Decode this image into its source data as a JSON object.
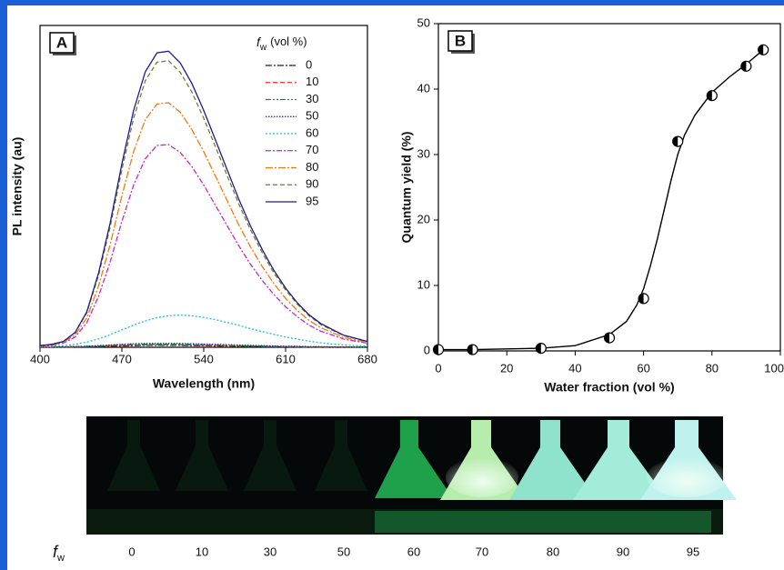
{
  "chart_data": [
    {
      "type": "line",
      "panel_label": "A",
      "y_label": "PL intensity (au)",
      "x_label": "Wavelength (nm)",
      "legend_title_symbol": "f",
      "legend_title_subscript": "w",
      "legend_title_unit": "(vol %)",
      "xlim": [
        400,
        680
      ],
      "xticks": [
        400,
        470,
        540,
        610,
        680
      ],
      "ylim": [
        0,
        100
      ],
      "x": [
        400,
        410,
        420,
        430,
        440,
        450,
        460,
        470,
        480,
        490,
        500,
        510,
        520,
        530,
        540,
        550,
        560,
        570,
        580,
        590,
        600,
        610,
        620,
        630,
        640,
        650,
        660,
        670,
        680
      ],
      "series": [
        {
          "name": "0",
          "color": "#222222",
          "dash": "7 2 2 2",
          "values": [
            0,
            0,
            0,
            0.1,
            0.1,
            0.2,
            0.3,
            0.4,
            0.5,
            0.6,
            0.6,
            0.6,
            0.6,
            0.5,
            0.5,
            0.4,
            0.4,
            0.3,
            0.3,
            0.2,
            0.2,
            0.1,
            0.1,
            0.1,
            0.1,
            0,
            0,
            0,
            0
          ]
        },
        {
          "name": "10",
          "color": "#e8302c",
          "dash": "5 3",
          "values": [
            0,
            0,
            0.1,
            0.1,
            0.2,
            0.3,
            0.5,
            0.6,
            0.7,
            0.8,
            0.8,
            0.8,
            0.8,
            0.7,
            0.6,
            0.6,
            0.5,
            0.4,
            0.3,
            0.3,
            0.2,
            0.2,
            0.1,
            0.1,
            0.1,
            0,
            0,
            0,
            0
          ]
        },
        {
          "name": "30",
          "color": "#1a8a3a",
          "dash": "6 2 2 2 2 2",
          "values": [
            0,
            0.1,
            0.1,
            0.2,
            0.3,
            0.4,
            0.6,
            0.8,
            0.9,
            1,
            1,
            1,
            1,
            0.9,
            0.8,
            0.7,
            0.6,
            0.5,
            0.4,
            0.4,
            0.3,
            0.2,
            0.2,
            0.1,
            0.1,
            0.1,
            0.1,
            0,
            0
          ]
        },
        {
          "name": "50",
          "color": "#2a2aa0",
          "dash": "1.5 1.5",
          "values": [
            0,
            0.1,
            0.1,
            0.2,
            0.3,
            0.5,
            0.7,
            0.9,
            1.1,
            1.2,
            1.2,
            1.2,
            1.2,
            1.1,
            1,
            0.9,
            0.8,
            0.7,
            0.6,
            0.5,
            0.4,
            0.3,
            0.3,
            0.2,
            0.2,
            0.1,
            0.1,
            0.1,
            0.1
          ]
        },
        {
          "name": "60",
          "color": "#22bcd8",
          "dash": "2 2",
          "values": [
            0.2,
            0.3,
            0.5,
            0.9,
            1.6,
            2.6,
            3.9,
            5.4,
            6.9,
            8.2,
            9.2,
            9.8,
            10,
            9.8,
            9.3,
            8.6,
            7.7,
            6.8,
            5.8,
            4.9,
            4,
            3.2,
            2.5,
            1.9,
            1.4,
            1,
            0.7,
            0.5,
            0.4
          ]
        },
        {
          "name": "70",
          "color": "#c22bb8",
          "dash": "6 2 2 2",
          "values": [
            0.3,
            0.6,
            1.3,
            3.2,
            7.6,
            15.8,
            26.5,
            39.1,
            50.4,
            58.6,
            62.7,
            63,
            60.5,
            56.1,
            50.4,
            44.1,
            37.8,
            31.5,
            25.8,
            20.8,
            16.4,
            12.6,
            9.5,
            6.9,
            5,
            3.8,
            2.5,
            1.9,
            1.3
          ]
        },
        {
          "name": "80",
          "color": "#f07a10",
          "dash": "8 2 2 2",
          "values": [
            0.4,
            0.8,
            1.5,
            3.8,
            9.1,
            19,
            31.9,
            47.1,
            60.8,
            70.7,
            75.6,
            76,
            73,
            67.6,
            60.8,
            53.2,
            45.6,
            38,
            31.2,
            25.1,
            19.8,
            15.2,
            11.4,
            8.4,
            6.1,
            4.6,
            3,
            2.3,
            1.5
          ]
        },
        {
          "name": "90",
          "color": "#7a7a2a",
          "dash": "5 3",
          "values": [
            0.5,
            0.9,
            1.8,
            4.5,
            10.7,
            22.3,
            37.4,
            55.2,
            71.2,
            82.8,
            88.6,
            89,
            85.4,
            79.2,
            71.2,
            62.3,
            53.4,
            44.5,
            36.5,
            29.4,
            23.1,
            17.8,
            13.4,
            9.8,
            7.1,
            5.3,
            3.6,
            2.7,
            1.8
          ]
        },
        {
          "name": "95",
          "color": "#1c1c8c",
          "dash": "none",
          "values": [
            0.5,
            0.9,
            1.8,
            4.6,
            11,
            23,
            38.6,
            57,
            73.6,
            85.6,
            91.5,
            92,
            88.3,
            81.9,
            73.6,
            64.4,
            55.2,
            46,
            37.7,
            30.4,
            23.9,
            18.4,
            13.8,
            10.1,
            7.4,
            5.5,
            3.7,
            2.8,
            1.8
          ]
        }
      ]
    },
    {
      "type": "scatter",
      "panel_label": "B",
      "y_label": "Quantum yield (%)",
      "x_label": "Water fraction (vol %)",
      "xlim": [
        0,
        100
      ],
      "xticks": [
        0,
        20,
        40,
        60,
        80,
        100
      ],
      "ylim": [
        0,
        50
      ],
      "yticks": [
        0,
        10,
        20,
        30,
        40,
        50
      ],
      "x": [
        0,
        10,
        30,
        50,
        60,
        70,
        80,
        90,
        95
      ],
      "values": [
        0.2,
        0.2,
        0.4,
        2,
        8,
        32,
        39,
        43.5,
        46
      ],
      "color": "#000000",
      "fit": {
        "x": [
          0,
          10,
          20,
          30,
          40,
          50,
          55,
          58,
          60,
          62,
          64,
          66,
          68,
          70,
          72,
          75,
          80,
          85,
          90,
          95
        ],
        "y": [
          0.2,
          0.2,
          0.3,
          0.4,
          0.8,
          2.5,
          4.5,
          7,
          9.5,
          13,
          17,
          21.5,
          26,
          30,
          33,
          36,
          39.5,
          41.8,
          43.8,
          46
        ]
      }
    }
  ],
  "photo": {
    "label_symbol": "f",
    "label_subscript": "w",
    "labels": [
      "0",
      "10",
      "30",
      "50",
      "60",
      "70",
      "80",
      "90",
      "95"
    ]
  }
}
